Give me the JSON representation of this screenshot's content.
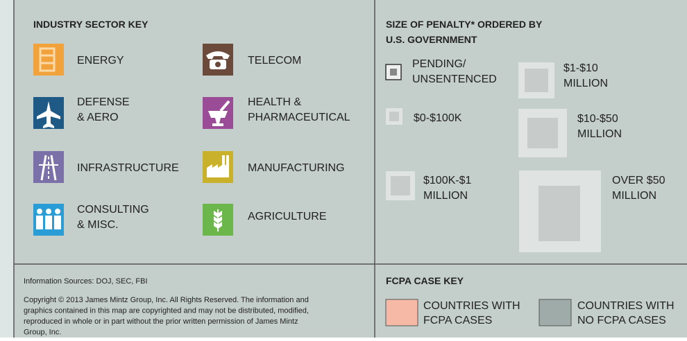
{
  "industry_key": {
    "title": "INDUSTRY SECTOR KEY",
    "sectors": [
      {
        "lines": [
          "ENERGY"
        ]
      },
      {
        "lines": [
          "TELECOM"
        ]
      },
      {
        "lines": [
          "DEFENSE",
          "& AERO"
        ]
      },
      {
        "lines": [
          "HEALTH &",
          "PHARMACEUTICAL"
        ]
      },
      {
        "lines": [
          "INFRASTRUCTURE"
        ]
      },
      {
        "lines": [
          "MANUFACTURING"
        ]
      },
      {
        "lines": [
          "CONSULTING",
          "& MISC."
        ]
      },
      {
        "lines": [
          "AGRICULTURE"
        ]
      }
    ]
  },
  "penalty_key": {
    "title": [
      "SIZE OF PENALTY* ORDERED BY",
      "U.S. GOVERNMENT"
    ],
    "sizes": [
      {
        "lines": [
          "PENDING/",
          "UNSENTENCED"
        ]
      },
      {
        "lines": [
          "$0-$100K"
        ]
      },
      {
        "lines": [
          "$100K-$1",
          "MILLION"
        ]
      },
      {
        "lines": [
          "$1-$10",
          "MILLION"
        ]
      },
      {
        "lines": [
          "$10-$50",
          "MILLION"
        ]
      },
      {
        "lines": [
          "OVER $50",
          "MILLION"
        ]
      }
    ]
  },
  "footer": {
    "sources": "Information Sources: DOJ, SEC, FBI",
    "copyright": [
      "Copyright © 2013 James Mintz Group, Inc. All Rights Reserved. The information and",
      "graphics contained in this map are copyrighted and may not be distributed, modified,",
      "reproduced in whole or in part without the prior written permission of James Mintz",
      "Group, Inc."
    ]
  },
  "fcpa_key": {
    "title": "FCPA CASE KEY",
    "items": [
      {
        "lines": [
          "COUNTRIES WITH",
          "FCPA CASES"
        ]
      },
      {
        "lines": [
          "COUNTRIES WITH",
          "NO FCPA CASES"
        ]
      }
    ]
  }
}
